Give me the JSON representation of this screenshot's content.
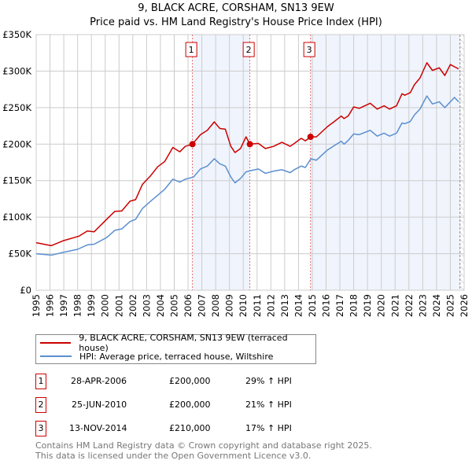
{
  "chart_data": {
    "type": "line",
    "title": "9, BLACK ACRE, CORSHAM, SN13 9EW",
    "subtitle": "Price paid vs. HM Land Registry's House Price Index (HPI)",
    "xlim": [
      1995,
      2026
    ],
    "ylim": [
      0,
      350000
    ],
    "x_ticks": [
      "1995",
      "1996",
      "1997",
      "1998",
      "1999",
      "2000",
      "2001",
      "2002",
      "2003",
      "2004",
      "2005",
      "2006",
      "2007",
      "2008",
      "2009",
      "2010",
      "2011",
      "2012",
      "2013",
      "2014",
      "2015",
      "2016",
      "2017",
      "2018",
      "2019",
      "2020",
      "2021",
      "2022",
      "2023",
      "2024",
      "2025",
      "2026"
    ],
    "y_ticks": [
      {
        "v": 0,
        "label": "£0"
      },
      {
        "v": 50000,
        "label": "£50K"
      },
      {
        "v": 100000,
        "label": "£100K"
      },
      {
        "v": 150000,
        "label": "£150K"
      },
      {
        "v": 200000,
        "label": "£200K"
      },
      {
        "v": 250000,
        "label": "£250K"
      },
      {
        "v": 300000,
        "label": "£300K"
      },
      {
        "v": 350000,
        "label": "£350K"
      }
    ],
    "grid": true,
    "forecast_start": 2025.7,
    "series": [
      {
        "name": "9, BLACK ACRE, CORSHAM, SN13 9EW (terraced house)",
        "color": "#cc0000",
        "x": [
          1995.0,
          1996.1,
          1997.0,
          1998.1,
          1998.7,
          1999.2,
          2000.1,
          2000.7,
          2001.2,
          2001.8,
          2002.2,
          2002.7,
          2003.3,
          2003.8,
          2004.3,
          2004.9,
          2005.4,
          2005.8,
          2006.32,
          2006.9,
          2007.4,
          2007.9,
          2008.3,
          2008.7,
          2009.1,
          2009.4,
          2009.8,
          2010.2,
          2010.48,
          2011.1,
          2011.6,
          2012.2,
          2012.8,
          2013.4,
          2013.7,
          2014.2,
          2014.5,
          2014.87,
          2015.3,
          2016.1,
          2016.6,
          2017.1,
          2017.3,
          2017.6,
          2018.0,
          2018.4,
          2019.2,
          2019.7,
          2020.2,
          2020.6,
          2021.1,
          2021.5,
          2021.7,
          2022.1,
          2022.4,
          2022.8,
          2023.3,
          2023.7,
          2024.2,
          2024.6,
          2025.0,
          2025.3,
          2025.6
        ],
        "y": [
          65000,
          61000,
          68000,
          74000,
          81000,
          80000,
          97000,
          108000,
          108500,
          122000,
          124000,
          145000,
          157000,
          169000,
          176000,
          195500,
          189500,
          197000,
          200000,
          213000,
          219000,
          230500,
          221500,
          220500,
          197000,
          188500,
          194000,
          210000,
          200000,
          201000,
          194000,
          197000,
          202500,
          197000,
          201000,
          208000,
          204500,
          210000,
          210000,
          224000,
          231000,
          238500,
          235000,
          238500,
          251000,
          249000,
          256000,
          248000,
          252500,
          248000,
          252500,
          269000,
          267000,
          270500,
          281500,
          290500,
          311500,
          301000,
          304500,
          294000,
          309000,
          306000,
          303000
        ]
      },
      {
        "name": "HPI: Average price, terraced house, Wiltshire",
        "color": "#5b8fd0",
        "x": [
          1995.0,
          1996.1,
          1997.0,
          1998.0,
          1998.7,
          1999.2,
          2000.1,
          2000.7,
          2001.2,
          2001.8,
          2002.2,
          2002.7,
          2003.3,
          2003.8,
          2004.3,
          2004.9,
          2005.4,
          2005.8,
          2006.4,
          2006.9,
          2007.4,
          2007.9,
          2008.3,
          2008.7,
          2009.1,
          2009.4,
          2009.8,
          2010.2,
          2010.6,
          2011.1,
          2011.6,
          2012.2,
          2012.8,
          2013.4,
          2013.7,
          2014.2,
          2014.5,
          2014.9,
          2015.3,
          2016.1,
          2016.6,
          2017.1,
          2017.3,
          2017.6,
          2018.0,
          2018.4,
          2019.2,
          2019.7,
          2020.2,
          2020.6,
          2021.1,
          2021.5,
          2021.7,
          2022.1,
          2022.4,
          2022.8,
          2023.3,
          2023.7,
          2024.2,
          2024.6,
          2025.3,
          2025.6
        ],
        "y": [
          50000,
          48000,
          52000,
          56000,
          62000,
          63000,
          72000,
          82000,
          84000,
          94000,
          97000,
          112000,
          122000,
          130000,
          138000,
          152000,
          148000,
          152000,
          155000,
          166000,
          170000,
          180000,
          173000,
          170000,
          155000,
          147000,
          153000,
          162000,
          164000,
          166000,
          160000,
          163000,
          165000,
          161000,
          165000,
          170000,
          168000,
          180000,
          178000,
          192000,
          198000,
          204000,
          200000,
          205000,
          214000,
          213000,
          219000,
          211000,
          215000,
          211000,
          215000,
          229000,
          228000,
          231000,
          240000,
          248000,
          266000,
          255000,
          258000,
          250000,
          264000,
          258000
        ]
      }
    ],
    "sales": [
      {
        "label": "1",
        "x": 2006.32,
        "y": 200000,
        "date": "28-APR-2006",
        "price": "£200,000",
        "hpi": "29% ↑ HPI"
      },
      {
        "label": "2",
        "x": 2010.48,
        "y": 200000,
        "date": "25-JUN-2010",
        "price": "£200,000",
        "hpi": "21% ↑ HPI"
      },
      {
        "label": "3",
        "x": 2014.87,
        "y": 210000,
        "date": "13-NOV-2014",
        "price": "£210,000",
        "hpi": "17% ↑ HPI"
      }
    ]
  },
  "footer": {
    "line1": "Contains HM Land Registry data © Crown copyright and database right 2025.",
    "line2": "This data is licensed under the Open Government Licence v3.0."
  }
}
